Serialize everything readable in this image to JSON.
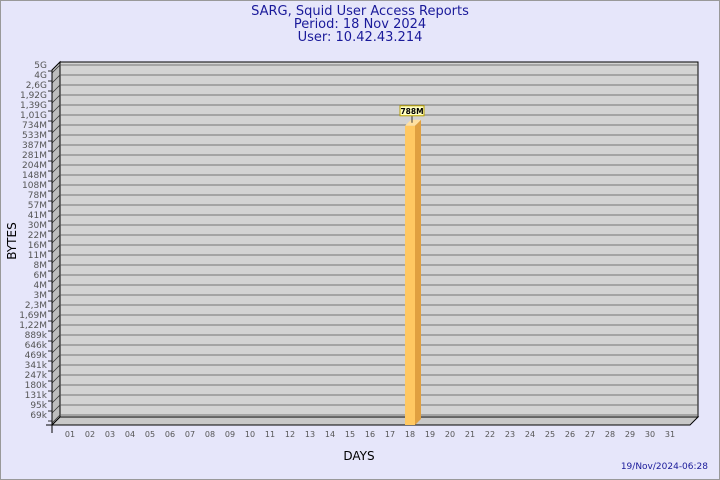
{
  "header": {
    "title": "SARG, Squid User Access Reports",
    "period": "Period: 18 Nov 2024",
    "user": "User: 10.42.43.214"
  },
  "footer": {
    "generated": "19/Nov/2024-06:28"
  },
  "chart_data": {
    "type": "bar",
    "xlabel": "DAYS",
    "ylabel": "BYTES",
    "y_scale": "log",
    "grid": true,
    "categories": [
      "01",
      "02",
      "03",
      "04",
      "05",
      "06",
      "07",
      "08",
      "09",
      "10",
      "11",
      "12",
      "13",
      "14",
      "15",
      "16",
      "17",
      "18",
      "19",
      "20",
      "21",
      "22",
      "23",
      "24",
      "25",
      "26",
      "27",
      "28",
      "29",
      "30",
      "31"
    ],
    "y_tick_labels": [
      "5G",
      "4G",
      "2,6G",
      "1,92G",
      "1,39G",
      "1,01G",
      "734M",
      "533M",
      "387M",
      "281M",
      "204M",
      "148M",
      "108M",
      "78M",
      "57M",
      "41M",
      "30M",
      "22M",
      "16M",
      "11M",
      "8M",
      "6M",
      "4M",
      "3M",
      "2,3M",
      "1,69M",
      "1,22M",
      "889k",
      "646k",
      "469k",
      "341k",
      "247k",
      "180k",
      "131k",
      "95k",
      "69k"
    ],
    "series": [
      {
        "day": "18",
        "value_label": "788M",
        "value": 788000000
      }
    ],
    "colors": {
      "background": "#e6e6fa",
      "wall": "#d3d3d3",
      "bar_front": "#ffc862",
      "bar_side": "#e0a040",
      "title": "#1a1a9a"
    }
  }
}
